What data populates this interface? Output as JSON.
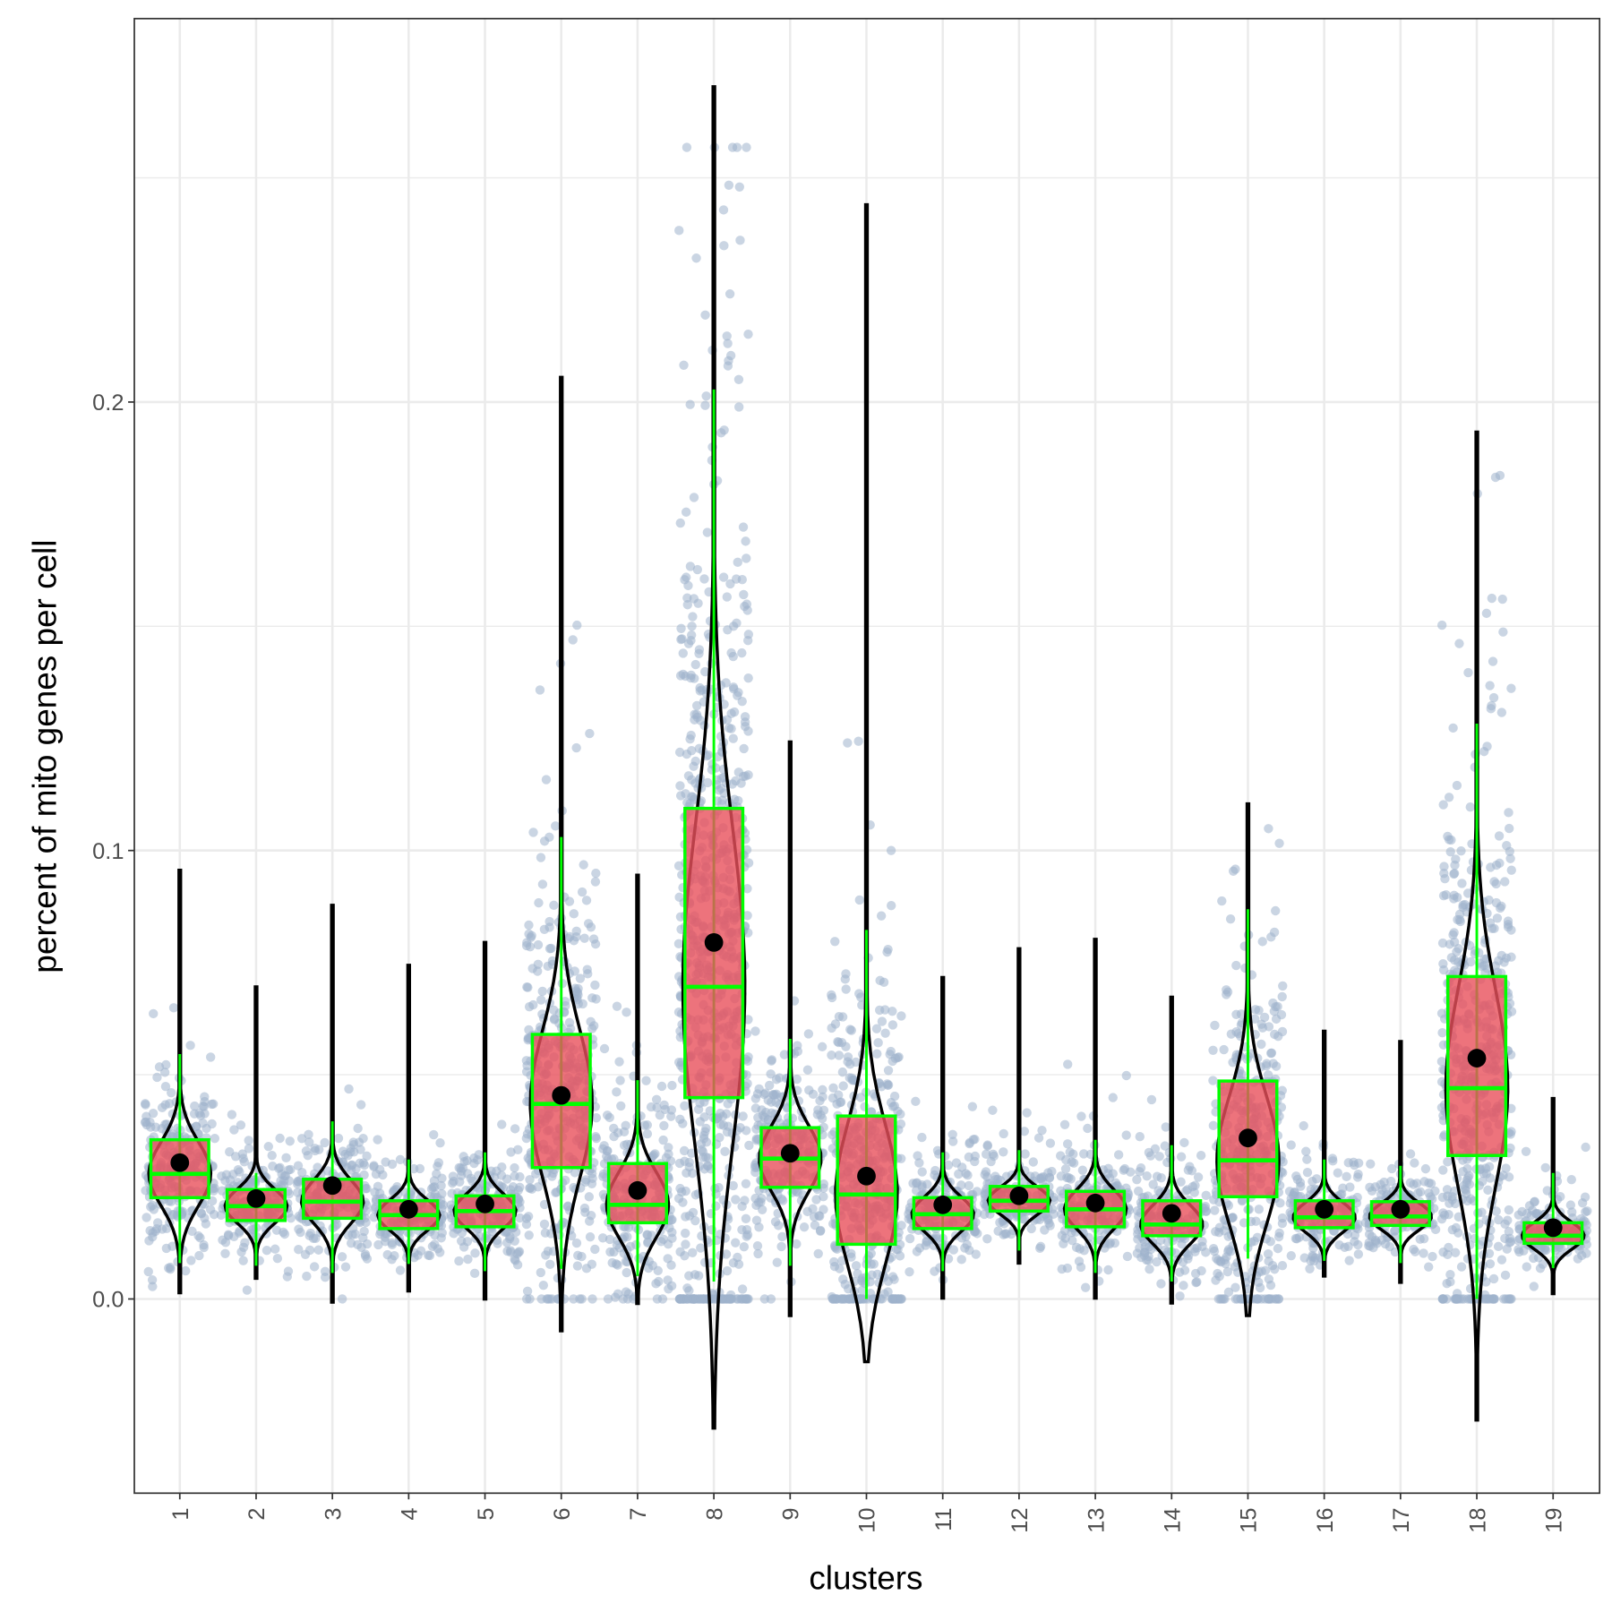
{
  "chart_data": {
    "type": "violin-box-jitter",
    "title": "",
    "xlabel": "clusters",
    "ylabel": "percent of mito genes per cell",
    "ylim": [
      -0.0433,
      0.2855
    ],
    "y_ticks": [
      0.0,
      0.1,
      0.2
    ],
    "y_tick_labels": [
      "0.0",
      "0.1",
      "0.2"
    ],
    "grid": true,
    "categories": [
      "1",
      "2",
      "3",
      "4",
      "5",
      "6",
      "7",
      "8",
      "9",
      "10",
      "11",
      "12",
      "13",
      "14",
      "15",
      "16",
      "17",
      "18",
      "19"
    ],
    "series": {
      "q1": [
        0.0226,
        0.0175,
        0.018,
        0.0157,
        0.0161,
        0.0293,
        0.017,
        0.0449,
        0.0249,
        0.0122,
        0.0157,
        0.0196,
        0.0161,
        0.0141,
        0.0228,
        0.0159,
        0.0164,
        0.032,
        0.0124
      ],
      "median": [
        0.0279,
        0.0207,
        0.0217,
        0.0187,
        0.0196,
        0.0435,
        0.021,
        0.0696,
        0.0313,
        0.0233,
        0.0189,
        0.0219,
        0.02,
        0.0166,
        0.0309,
        0.0182,
        0.0184,
        0.047,
        0.0141
      ],
      "q3": [
        0.0355,
        0.0244,
        0.0267,
        0.0219,
        0.023,
        0.059,
        0.0302,
        0.1094,
        0.0382,
        0.0408,
        0.0226,
        0.0251,
        0.024,
        0.0219,
        0.0486,
        0.0219,
        0.0217,
        0.0719,
        0.017
      ],
      "mean": [
        0.0304,
        0.0224,
        0.0253,
        0.02,
        0.0212,
        0.0454,
        0.0242,
        0.0795,
        0.0325,
        0.0274,
        0.021,
        0.023,
        0.0214,
        0.0191,
        0.0359,
        0.02,
        0.02,
        0.0537,
        0.0159
      ],
      "whisker_low": [
        0.008,
        0.0074,
        0.0058,
        0.0078,
        0.0062,
        0.0067,
        0.0051,
        0.0039,
        0.0074,
        0.0,
        0.0062,
        0.0108,
        0.0058,
        0.0039,
        0.009,
        0.0085,
        0.008,
        0.0,
        0.0069
      ],
      "whisker_high": [
        0.0546,
        0.0281,
        0.0396,
        0.0311,
        0.0327,
        0.103,
        0.0488,
        0.2028,
        0.058,
        0.0823,
        0.0327,
        0.0332,
        0.0355,
        0.0343,
        0.0869,
        0.0311,
        0.0297,
        0.1283,
        0.0281
      ],
      "violin_min": [
        0.0014,
        0.0046,
        -0.0007,
        0.0018,
        0.0,
        -0.0071,
        -0.001,
        -0.0288,
        -0.0037,
        -0.014,
        0.0002,
        0.008,
        0.0002,
        -0.0009,
        -0.0037,
        0.0051,
        0.0037,
        -0.027,
        0.0012
      ],
      "violin_max": [
        0.0956,
        0.0696,
        0.0878,
        0.0744,
        0.0795,
        0.2055,
        0.0945,
        0.2703,
        0.1242,
        0.244,
        0.0717,
        0.0781,
        0.0802,
        0.0673,
        0.1104,
        0.0597,
        0.0574,
        0.1933,
        0.0447
      ]
    },
    "colors": {
      "points": "#9fb3cc",
      "box_fill": "#e8505b",
      "box_outline": "#00ff00",
      "violin": "#000000",
      "mean_point": "#000000",
      "grid": "#ebebeb"
    }
  }
}
